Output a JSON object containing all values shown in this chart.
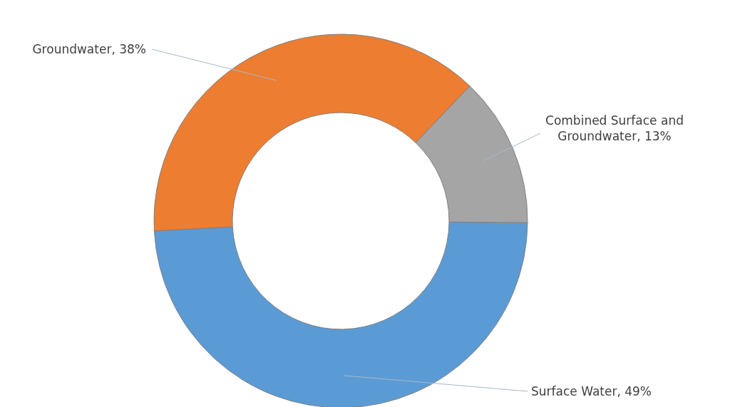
{
  "chart_data": {
    "type": "donut",
    "categories": [
      "Surface Water",
      "Groundwater",
      "Combined Surface and Groundwater"
    ],
    "values": [
      49,
      38,
      13
    ],
    "colors": [
      "#5b9bd5",
      "#ed7d31",
      "#a5a5a5"
    ],
    "value_labels": [
      "49%",
      "38%",
      "13%"
    ]
  }
}
